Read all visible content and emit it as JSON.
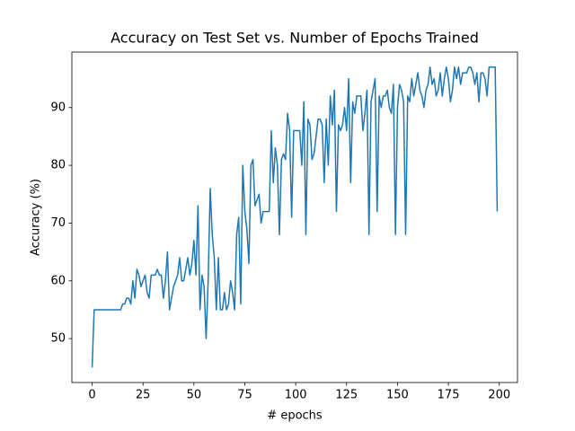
{
  "chart_data": {
    "type": "line",
    "title": "Accuracy on Test Set vs. Number of Epochs Trained",
    "x_label": "# epochs",
    "y_label": "Accuracy (%)",
    "color": "#1f77b4",
    "x": [
      0,
      1,
      2,
      3,
      4,
      5,
      6,
      7,
      8,
      9,
      10,
      11,
      12,
      13,
      14,
      15,
      16,
      17,
      18,
      19,
      20,
      21,
      22,
      23,
      24,
      25,
      26,
      27,
      28,
      29,
      30,
      31,
      32,
      33,
      34,
      35,
      36,
      37,
      38,
      39,
      40,
      41,
      42,
      43,
      44,
      45,
      46,
      47,
      48,
      49,
      50,
      51,
      52,
      53,
      54,
      55,
      56,
      57,
      58,
      59,
      60,
      61,
      62,
      63,
      64,
      65,
      66,
      67,
      68,
      69,
      70,
      71,
      72,
      73,
      74,
      75,
      76,
      77,
      78,
      79,
      80,
      81,
      82,
      83,
      84,
      85,
      86,
      87,
      88,
      89,
      90,
      91,
      92,
      93,
      94,
      95,
      96,
      97,
      98,
      99,
      100,
      101,
      102,
      103,
      104,
      105,
      106,
      107,
      108,
      109,
      110,
      111,
      112,
      113,
      114,
      115,
      116,
      117,
      118,
      119,
      120,
      121,
      122,
      123,
      124,
      125,
      126,
      127,
      128,
      129,
      130,
      131,
      132,
      133,
      134,
      135,
      136,
      137,
      138,
      139,
      140,
      141,
      142,
      143,
      144,
      145,
      146,
      147,
      148,
      149,
      150,
      151,
      152,
      153,
      154,
      155,
      156,
      157,
      158,
      159,
      160,
      161,
      162,
      163,
      164,
      165,
      166,
      167,
      168,
      169,
      170,
      171,
      172,
      173,
      174,
      175,
      176,
      177,
      178,
      179,
      180,
      181,
      182,
      183,
      184,
      185,
      186,
      187,
      188,
      189,
      190,
      191,
      192,
      193,
      194,
      195,
      196,
      197,
      198,
      199
    ],
    "values": [
      45,
      55,
      55,
      55,
      55,
      55,
      55,
      55,
      55,
      55,
      55,
      55,
      55,
      55,
      55,
      56,
      56,
      57,
      57,
      56,
      60,
      57,
      62,
      61,
      59,
      60,
      61,
      58,
      57,
      61,
      61,
      61,
      62,
      61,
      61,
      57,
      60,
      65,
      55,
      57,
      59,
      60,
      61,
      64,
      60,
      60,
      62,
      64,
      61,
      63,
      67,
      61,
      73,
      55,
      61,
      59,
      50,
      60,
      76,
      68,
      64,
      55,
      64,
      55,
      55,
      58,
      55,
      56,
      60,
      58,
      55,
      68,
      71,
      56,
      80,
      72,
      69,
      63,
      80,
      81,
      73,
      74,
      75,
      70,
      72,
      72,
      72,
      72,
      86,
      77,
      83,
      80,
      68,
      81,
      82,
      81,
      89,
      86,
      71,
      86,
      86,
      86,
      86,
      80,
      91,
      68,
      88,
      87,
      81,
      82,
      85,
      88,
      88,
      87,
      77,
      88,
      80,
      92,
      87,
      93,
      72,
      87,
      86,
      87,
      90,
      86,
      95,
      77,
      91,
      89,
      92,
      92,
      92,
      86,
      89,
      93,
      68,
      91,
      93,
      95,
      72,
      92,
      90,
      92,
      92,
      93,
      90,
      89,
      94,
      68,
      90,
      94,
      93,
      91,
      68,
      92,
      91,
      95,
      92,
      94,
      96,
      93,
      92,
      90,
      93,
      94,
      97,
      94,
      95,
      92,
      93,
      96,
      92,
      95,
      97,
      95,
      91,
      93,
      97,
      95,
      97,
      94,
      96,
      96,
      96,
      97,
      97,
      96,
      94,
      96,
      91,
      96,
      96,
      95,
      92,
      97,
      97,
      97,
      97,
      72
    ],
    "xlim": [
      -9.95,
      208.95
    ],
    "ylim": [
      42.4,
      99.6
    ],
    "xticks": [
      0,
      25,
      50,
      75,
      100,
      125,
      150,
      175,
      200
    ],
    "yticks": [
      50,
      60,
      70,
      80,
      90
    ]
  }
}
